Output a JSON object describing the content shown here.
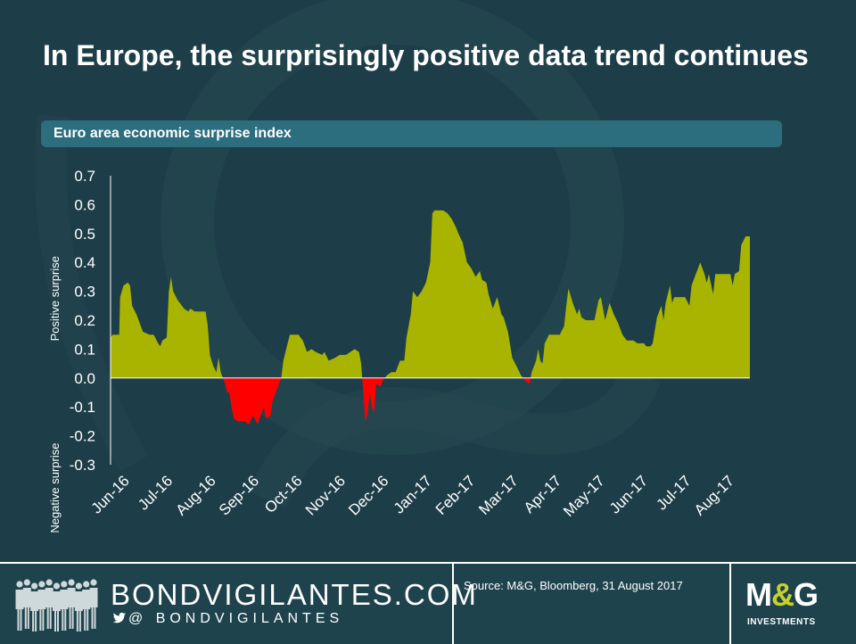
{
  "title": "In Europe, the surprisingly positive data trend continues",
  "subtitle": "Euro area economic surprise index",
  "colors": {
    "background": "#1d3e48",
    "positive": "#a8b400",
    "negative": "#ff0000",
    "subtitle_bar": "#2c6d7e"
  },
  "chart_data": {
    "type": "area",
    "title": "Euro area economic surprise index",
    "ylabel_positive": "Positive surprise",
    "ylabel_negative": "Negative surprise",
    "ylim": [
      -0.3,
      0.7
    ],
    "yticks": [
      "0.7",
      "0.6",
      "0.5",
      "0.4",
      "0.3",
      "0.2",
      "0.1",
      "0.0",
      "-0.1",
      "-0.2",
      "-0.3"
    ],
    "xticks": [
      "Jun-16",
      "Jul-16",
      "Aug-16",
      "Sep-16",
      "Oct-16",
      "Nov-16",
      "Dec-16",
      "Jan-17",
      "Feb-17",
      "Mar-17",
      "Apr-17",
      "May-17",
      "Jun-17",
      "Jul-17",
      "Aug-17"
    ],
    "x_unit": "months since Jun-16",
    "x_range": [
      0,
      14.8
    ],
    "series": [
      {
        "name": "Euro area economic surprise index",
        "points": [
          [
            0.0,
            0.14
          ],
          [
            0.05,
            0.15
          ],
          [
            0.2,
            0.15
          ],
          [
            0.22,
            0.28
          ],
          [
            0.3,
            0.32
          ],
          [
            0.4,
            0.33
          ],
          [
            0.45,
            0.32
          ],
          [
            0.5,
            0.25
          ],
          [
            0.6,
            0.22
          ],
          [
            0.75,
            0.16
          ],
          [
            0.9,
            0.15
          ],
          [
            1.0,
            0.15
          ],
          [
            1.1,
            0.12
          ],
          [
            1.15,
            0.11
          ],
          [
            1.2,
            0.13
          ],
          [
            1.3,
            0.14
          ],
          [
            1.35,
            0.3
          ],
          [
            1.4,
            0.35
          ],
          [
            1.45,
            0.3
          ],
          [
            1.55,
            0.27
          ],
          [
            1.7,
            0.24
          ],
          [
            1.8,
            0.23
          ],
          [
            1.85,
            0.24
          ],
          [
            1.95,
            0.23
          ],
          [
            2.05,
            0.23
          ],
          [
            2.2,
            0.23
          ],
          [
            2.25,
            0.18
          ],
          [
            2.3,
            0.08
          ],
          [
            2.38,
            0.04
          ],
          [
            2.45,
            0.02
          ],
          [
            2.5,
            0.07
          ],
          [
            2.55,
            0.02
          ],
          [
            2.6,
            0.0
          ],
          [
            2.65,
            -0.02
          ],
          [
            2.7,
            -0.05
          ],
          [
            2.75,
            -0.05
          ],
          [
            2.8,
            -0.1
          ],
          [
            2.85,
            -0.14
          ],
          [
            2.95,
            -0.15
          ],
          [
            3.1,
            -0.15
          ],
          [
            3.2,
            -0.16
          ],
          [
            3.3,
            -0.13
          ],
          [
            3.4,
            -0.16
          ],
          [
            3.5,
            -0.12
          ],
          [
            3.55,
            -0.1
          ],
          [
            3.6,
            -0.14
          ],
          [
            3.7,
            -0.13
          ],
          [
            3.75,
            -0.08
          ],
          [
            3.85,
            -0.04
          ],
          [
            3.95,
            0.0
          ],
          [
            4.0,
            0.06
          ],
          [
            4.1,
            0.12
          ],
          [
            4.15,
            0.15
          ],
          [
            4.35,
            0.15
          ],
          [
            4.45,
            0.13
          ],
          [
            4.55,
            0.09
          ],
          [
            4.65,
            0.1
          ],
          [
            4.75,
            0.09
          ],
          [
            4.9,
            0.08
          ],
          [
            4.95,
            0.09
          ],
          [
            5.05,
            0.06
          ],
          [
            5.2,
            0.07
          ],
          [
            5.3,
            0.08
          ],
          [
            5.45,
            0.08
          ],
          [
            5.55,
            0.09
          ],
          [
            5.65,
            0.1
          ],
          [
            5.75,
            0.09
          ],
          [
            5.8,
            0.05
          ],
          [
            5.85,
            -0.05
          ],
          [
            5.9,
            -0.15
          ],
          [
            5.95,
            -0.12
          ],
          [
            6.0,
            -0.05
          ],
          [
            6.05,
            -0.1
          ],
          [
            6.1,
            -0.12
          ],
          [
            6.15,
            -0.02
          ],
          [
            6.25,
            -0.03
          ],
          [
            6.3,
            -0.01
          ],
          [
            6.4,
            0.01
          ],
          [
            6.5,
            0.02
          ],
          [
            6.6,
            0.02
          ],
          [
            6.65,
            0.04
          ],
          [
            6.7,
            0.06
          ],
          [
            6.8,
            0.06
          ],
          [
            6.85,
            0.14
          ],
          [
            6.95,
            0.22
          ],
          [
            7.0,
            0.3
          ],
          [
            7.1,
            0.28
          ],
          [
            7.2,
            0.3
          ],
          [
            7.3,
            0.33
          ],
          [
            7.4,
            0.4
          ],
          [
            7.45,
            0.57
          ],
          [
            7.5,
            0.58
          ],
          [
            7.7,
            0.58
          ],
          [
            7.8,
            0.57
          ],
          [
            7.9,
            0.55
          ],
          [
            8.0,
            0.52
          ],
          [
            8.05,
            0.5
          ],
          [
            8.15,
            0.47
          ],
          [
            8.25,
            0.4
          ],
          [
            8.35,
            0.38
          ],
          [
            8.45,
            0.35
          ],
          [
            8.55,
            0.37
          ],
          [
            8.6,
            0.34
          ],
          [
            8.7,
            0.33
          ],
          [
            8.75,
            0.29
          ],
          [
            8.85,
            0.24
          ],
          [
            8.95,
            0.28
          ],
          [
            9.05,
            0.22
          ],
          [
            9.1,
            0.21
          ],
          [
            9.2,
            0.16
          ],
          [
            9.3,
            0.07
          ],
          [
            9.4,
            0.04
          ],
          [
            9.5,
            0.01
          ],
          [
            9.6,
            -0.01
          ],
          [
            9.7,
            -0.02
          ],
          [
            9.75,
            0.02
          ],
          [
            9.85,
            0.06
          ],
          [
            9.9,
            0.1
          ],
          [
            9.95,
            0.06
          ],
          [
            10.0,
            0.05
          ],
          [
            10.05,
            0.12
          ],
          [
            10.15,
            0.15
          ],
          [
            10.4,
            0.15
          ],
          [
            10.5,
            0.18
          ],
          [
            10.55,
            0.25
          ],
          [
            10.6,
            0.31
          ],
          [
            10.7,
            0.26
          ],
          [
            10.8,
            0.22
          ],
          [
            10.85,
            0.24
          ],
          [
            10.9,
            0.21
          ],
          [
            11.0,
            0.2
          ],
          [
            11.2,
            0.2
          ],
          [
            11.3,
            0.27
          ],
          [
            11.35,
            0.28
          ],
          [
            11.45,
            0.2
          ],
          [
            11.55,
            0.26
          ],
          [
            11.65,
            0.22
          ],
          [
            11.75,
            0.19
          ],
          [
            11.85,
            0.15
          ],
          [
            11.95,
            0.13
          ],
          [
            12.1,
            0.13
          ],
          [
            12.2,
            0.12
          ],
          [
            12.35,
            0.12
          ],
          [
            12.4,
            0.11
          ],
          [
            12.5,
            0.11
          ],
          [
            12.55,
            0.12
          ],
          [
            12.65,
            0.21
          ],
          [
            12.75,
            0.25
          ],
          [
            12.8,
            0.2
          ],
          [
            12.85,
            0.26
          ],
          [
            12.95,
            0.32
          ],
          [
            13.0,
            0.26
          ],
          [
            13.05,
            0.28
          ],
          [
            13.3,
            0.28
          ],
          [
            13.4,
            0.25
          ],
          [
            13.45,
            0.32
          ],
          [
            13.55,
            0.36
          ],
          [
            13.65,
            0.4
          ],
          [
            13.75,
            0.36
          ],
          [
            13.8,
            0.33
          ],
          [
            13.85,
            0.36
          ],
          [
            13.95,
            0.29
          ],
          [
            14.0,
            0.36
          ],
          [
            14.35,
            0.36
          ],
          [
            14.4,
            0.32
          ],
          [
            14.45,
            0.36
          ],
          [
            14.55,
            0.37
          ],
          [
            14.6,
            0.46
          ],
          [
            14.7,
            0.49
          ],
          [
            14.8,
            0.49
          ]
        ]
      }
    ]
  },
  "footer": {
    "brand_name": "BONDVIGILANTES.COM",
    "brand_handle": "@ BONDVIGILANTES",
    "source": "Source: M&G,  Bloomberg, 31 August 2017",
    "logo_m": "M",
    "logo_amp": "&",
    "logo_g": "G",
    "logo_sub": "INVESTMENTS"
  }
}
